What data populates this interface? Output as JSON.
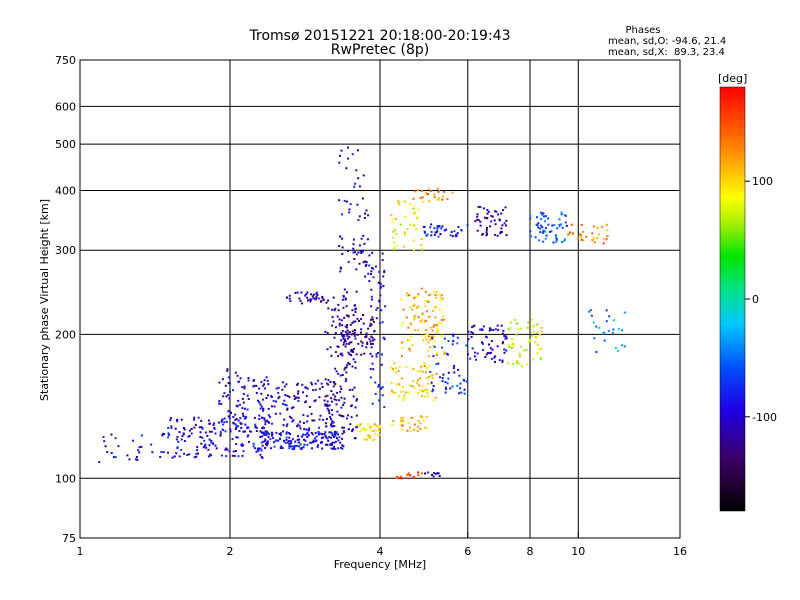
{
  "chart_data": {
    "type": "scatter",
    "title": "Tromsø 20151221 20:18:00-20:19:43",
    "subtitle": "RwPretec (8p)",
    "xlabel": "Frequency [MHz]",
    "ylabel": "Stationary phase Virtual Height [km]",
    "x_scale": "log",
    "y_scale": "log",
    "xlim": [
      1,
      16
    ],
    "ylim": [
      75,
      750
    ],
    "xticks": [
      "1",
      "2",
      "4",
      "6",
      "8",
      "10",
      "16"
    ],
    "yticks": [
      "750",
      "600",
      "500",
      "400",
      "300",
      "200",
      "100",
      "75"
    ],
    "grid": true,
    "stats": {
      "heading": "Phases",
      "line_o": "mean, sd,O: -94.6, 21.4",
      "line_x": "mean, sd,X:  89.3, 23.4"
    },
    "colorbar": {
      "label": "[deg]",
      "range": [
        -180,
        180
      ],
      "ticks": [
        "100",
        "0",
        "-100"
      ],
      "tick_values": [
        100,
        0,
        -100
      ]
    },
    "clusters": [
      {
        "x": [
          1.08,
          1.5
        ],
        "y": [
          108,
          125
        ],
        "phase": -100,
        "n": 30
      },
      {
        "x": [
          1.5,
          2.4
        ],
        "y": [
          110,
          135
        ],
        "phase": -95,
        "n": 180
      },
      {
        "x": [
          1.9,
          2.4
        ],
        "y": [
          125,
          170
        ],
        "phase": -100,
        "n": 90
      },
      {
        "x": [
          2.3,
          3.4
        ],
        "y": [
          115,
          125
        ],
        "phase": -90,
        "n": 160
      },
      {
        "x": [
          2.3,
          3.4
        ],
        "y": [
          125,
          160
        ],
        "phase": -105,
        "n": 130
      },
      {
        "x": [
          2.6,
          3.1
        ],
        "y": [
          232,
          245
        ],
        "phase": -110,
        "n": 35
      },
      {
        "x": [
          3.1,
          3.6
        ],
        "y": [
          120,
          250
        ],
        "phase": -110,
        "n": 150
      },
      {
        "x": [
          3.3,
          3.9
        ],
        "y": [
          180,
          220
        ],
        "phase": -120,
        "n": 80
      },
      {
        "x": [
          3.3,
          3.9
        ],
        "y": [
          260,
          330
        ],
        "phase": -110,
        "n": 40
      },
      {
        "x": [
          3.8,
          4.1
        ],
        "y": [
          140,
          300
        ],
        "phase": -100,
        "n": 60
      },
      {
        "x": [
          3.3,
          3.8
        ],
        "y": [
          340,
          500
        ],
        "phase": -95,
        "n": 30
      },
      {
        "x": [
          3.6,
          4.0
        ],
        "y": [
          120,
          130
        ],
        "phase": 100,
        "n": 35
      },
      {
        "x": [
          4.2,
          5.0
        ],
        "y": [
          125,
          135
        ],
        "phase": 105,
        "n": 30
      },
      {
        "x": [
          4.2,
          5.2
        ],
        "y": [
          145,
          175
        ],
        "phase": 95,
        "n": 70
      },
      {
        "x": [
          4.4,
          5.4
        ],
        "y": [
          180,
          250
        ],
        "phase": 110,
        "n": 110
      },
      {
        "x": [
          4.2,
          4.9
        ],
        "y": [
          300,
          380
        ],
        "phase": 85,
        "n": 40
      },
      {
        "x": [
          4.6,
          5.6
        ],
        "y": [
          380,
          410
        ],
        "phase": 130,
        "n": 25
      },
      {
        "x": [
          4.8,
          6.0
        ],
        "y": [
          320,
          340
        ],
        "phase": -85,
        "n": 40
      },
      {
        "x": [
          5.0,
          6.0
        ],
        "y": [
          150,
          200
        ],
        "phase": -80,
        "n": 50
      },
      {
        "x": [
          4.3,
          4.9
        ],
        "y": [
          100,
          103
        ],
        "phase": 150,
        "n": 15
      },
      {
        "x": [
          4.8,
          5.3
        ],
        "y": [
          100,
          103
        ],
        "phase": -90,
        "n": 10
      },
      {
        "x": [
          6.0,
          7.2
        ],
        "y": [
          175,
          210
        ],
        "phase": -100,
        "n": 60
      },
      {
        "x": [
          6.2,
          7.2
        ],
        "y": [
          320,
          370
        ],
        "phase": -110,
        "n": 50
      },
      {
        "x": [
          7.2,
          8.5
        ],
        "y": [
          170,
          215
        ],
        "phase": 80,
        "n": 55
      },
      {
        "x": [
          8.0,
          9.5
        ],
        "y": [
          310,
          360
        ],
        "phase": -60,
        "n": 60
      },
      {
        "x": [
          9.5,
          11.5
        ],
        "y": [
          310,
          340
        ],
        "phase": 130,
        "n": 30
      },
      {
        "x": [
          10.5,
          12.5
        ],
        "y": [
          180,
          230
        ],
        "phase": -40,
        "n": 25
      }
    ]
  }
}
